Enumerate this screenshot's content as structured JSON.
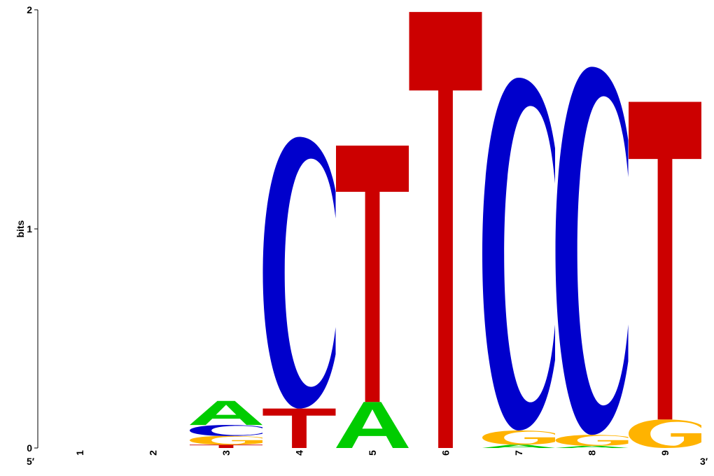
{
  "chart_data": {
    "type": "sequence-logo",
    "ylabel": "bits",
    "ylim": [
      0,
      2
    ],
    "y_ticks": [
      "0",
      "1",
      "2"
    ],
    "x_end_labels": {
      "left": "5′",
      "right": "3′"
    },
    "colors": {
      "A": "#00cc00",
      "C": "#0000cc",
      "G": "#ffb300",
      "T": "#cc0000"
    },
    "positions": [
      {
        "label": "1",
        "stack": []
      },
      {
        "label": "2",
        "stack": []
      },
      {
        "label": "3",
        "stack": [
          {
            "letter": "T",
            "height": 0.015
          },
          {
            "letter": "G",
            "height": 0.04
          },
          {
            "letter": "C",
            "height": 0.05
          },
          {
            "letter": "A",
            "height": 0.11
          }
        ]
      },
      {
        "label": "4",
        "stack": [
          {
            "letter": "T",
            "height": 0.18
          },
          {
            "letter": "C",
            "height": 1.24
          }
        ]
      },
      {
        "label": "5",
        "stack": [
          {
            "letter": "A",
            "height": 0.21
          },
          {
            "letter": "T",
            "height": 1.17
          }
        ]
      },
      {
        "label": "6",
        "stack": [
          {
            "letter": "T",
            "height": 1.99
          }
        ]
      },
      {
        "label": "7",
        "stack": [
          {
            "letter": "A",
            "height": 0.015
          },
          {
            "letter": "G",
            "height": 0.065
          },
          {
            "letter": "C",
            "height": 1.61
          }
        ]
      },
      {
        "label": "8",
        "stack": [
          {
            "letter": "A",
            "height": 0.01
          },
          {
            "letter": "G",
            "height": 0.05
          },
          {
            "letter": "C",
            "height": 1.68
          }
        ]
      },
      {
        "label": "9",
        "stack": [
          {
            "letter": "G",
            "height": 0.13
          },
          {
            "letter": "T",
            "height": 1.45
          }
        ]
      }
    ]
  }
}
